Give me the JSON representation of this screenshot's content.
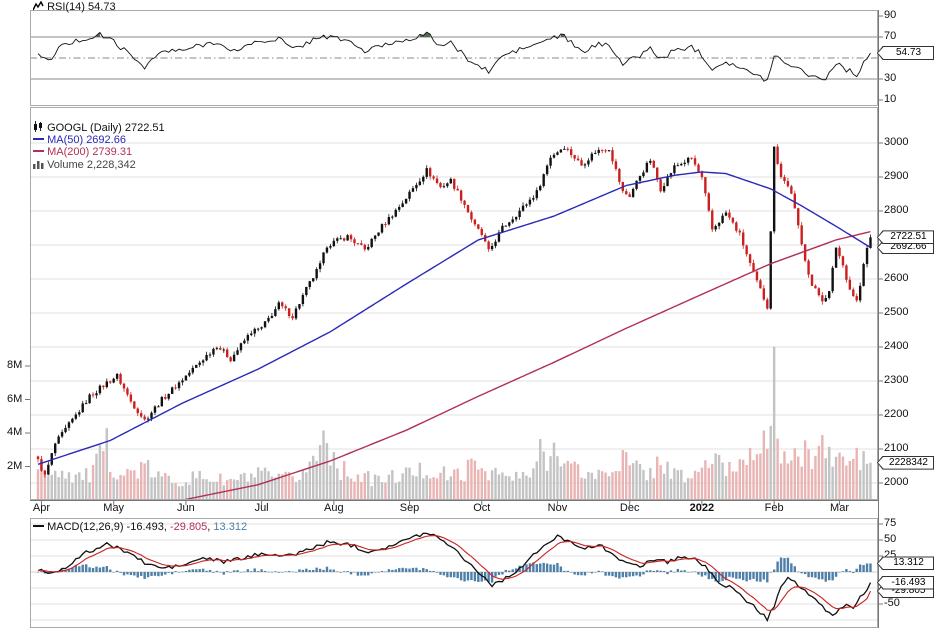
{
  "panes": {
    "rsi": {
      "title": "RSI(14)",
      "value": "54.73",
      "badge": "54.73",
      "axis_ticks": [
        90,
        70,
        30,
        10
      ]
    },
    "price": {
      "symbol_title": "GOOGL (Daily)",
      "symbol_value": "2722.51",
      "ma50_title": "MA(50)",
      "ma50_value": "2692.66",
      "ma200_title": "MA(200)",
      "ma200_value": "2739.31",
      "volume_title": "Volume",
      "volume_value": "2,228,342",
      "price_badge": "2722.51",
      "ma50_badge": "2692.66",
      "volume_badge": "2228342",
      "axis_ticks": [
        3000,
        2900,
        2800,
        2700,
        2600,
        2500,
        2400,
        2300,
        2200,
        2100,
        2000
      ],
      "volume_ticks": [
        {
          "label": "8M",
          "value": 8
        },
        {
          "label": "6M",
          "value": 6
        },
        {
          "label": "4M",
          "value": 4
        },
        {
          "label": "2M",
          "value": 2
        }
      ]
    },
    "macd": {
      "title": "MACD(12,26,9)",
      "value_macd": "-16.493",
      "value_signal": "-29.805",
      "value_hist": "13.312",
      "sep": ", ",
      "badge_hist": "13.312",
      "badge_macd": "-16.493",
      "badge_signal": "-29.805",
      "axis_ticks": [
        75,
        50,
        25,
        -50
      ]
    },
    "x_axis": {
      "months": [
        {
          "label": "Apr",
          "day": 1
        },
        {
          "label": "May",
          "day": 22
        },
        {
          "label": "Jun",
          "day": 43
        },
        {
          "label": "Jul",
          "day": 65
        },
        {
          "label": "Aug",
          "day": 86
        },
        {
          "label": "Sep",
          "day": 108
        },
        {
          "label": "Oct",
          "day": 129
        },
        {
          "label": "Nov",
          "day": 151
        },
        {
          "label": "Dec",
          "day": 172
        },
        {
          "label": "2022",
          "day": 193,
          "bold": true
        },
        {
          "label": "Feb",
          "day": 214
        },
        {
          "label": "Mar",
          "day": 233
        }
      ]
    }
  },
  "colors": {
    "up": "#111111",
    "down": "#cc2020",
    "ma50": "#2a2ab8",
    "ma200": "#b23055",
    "vol_up": "#c3c3c3",
    "vol_down": "#e9b4b4",
    "macd_line": "#111111",
    "signal_line": "#cc2020",
    "hist": "#4d7fa8",
    "grid": "#e0e0e0",
    "axis": "#777777",
    "pane_border": "#aaaaaa",
    "rsi_fill": "#3a5f35"
  },
  "chart_data": {
    "type": "candlestick",
    "title": "GOOGL (Daily) 2722.51 with MA(50), MA(200), Volume, RSI(14), MACD(12,26,9)",
    "x_domain": {
      "start": "Apr 2021",
      "end": "Mar 2022",
      "trading_days": 243
    },
    "price_ylim": [
      1950,
      3105
    ],
    "rsi_ylim": [
      0,
      100
    ],
    "rsi_levels": [
      70,
      50,
      30
    ],
    "macd_gridlines": [
      75,
      50,
      25,
      0,
      -25,
      -50,
      -75
    ],
    "last": {
      "close": 2722.51,
      "ma50": 2692.66,
      "ma200": 2739.31,
      "volume_shares": 2228342,
      "volume_m": 2.228342,
      "rsi": 54.73,
      "macd": -16.493,
      "signal": -29.805,
      "hist": 13.312
    },
    "series": {
      "close_anchors": [
        [
          0,
          2065
        ],
        [
          2,
          2020
        ],
        [
          5,
          2115
        ],
        [
          10,
          2185
        ],
        [
          15,
          2255
        ],
        [
          20,
          2295
        ],
        [
          23,
          2315
        ],
        [
          27,
          2240
        ],
        [
          31,
          2185
        ],
        [
          36,
          2245
        ],
        [
          41,
          2295
        ],
        [
          47,
          2355
        ],
        [
          52,
          2405
        ],
        [
          56,
          2365
        ],
        [
          62,
          2445
        ],
        [
          65,
          2455
        ],
        [
          70,
          2525
        ],
        [
          74,
          2490
        ],
        [
          78,
          2570
        ],
        [
          82,
          2640
        ],
        [
          84,
          2700
        ],
        [
          90,
          2725
        ],
        [
          95,
          2685
        ],
        [
          100,
          2755
        ],
        [
          106,
          2825
        ],
        [
          110,
          2880
        ],
        [
          113,
          2920
        ],
        [
          117,
          2870
        ],
        [
          120,
          2890
        ],
        [
          124,
          2820
        ],
        [
          127,
          2755
        ],
        [
          129,
          2730
        ],
        [
          131,
          2680
        ],
        [
          135,
          2750
        ],
        [
          140,
          2800
        ],
        [
          145,
          2855
        ],
        [
          149,
          2960
        ],
        [
          153,
          2990
        ],
        [
          158,
          2935
        ],
        [
          162,
          2975
        ],
        [
          166,
          2985
        ],
        [
          170,
          2855
        ],
        [
          172,
          2845
        ],
        [
          175,
          2905
        ],
        [
          178,
          2950
        ],
        [
          181,
          2865
        ],
        [
          185,
          2930
        ],
        [
          190,
          2955
        ],
        [
          193,
          2895
        ],
        [
          196,
          2745
        ],
        [
          200,
          2795
        ],
        [
          204,
          2730
        ],
        [
          208,
          2615
        ],
        [
          212,
          2520
        ],
        [
          213,
          2745
        ],
        [
          214,
          2985
        ],
        [
          216,
          2905
        ],
        [
          219,
          2855
        ],
        [
          222,
          2700
        ],
        [
          225,
          2580
        ],
        [
          228,
          2540
        ],
        [
          230,
          2560
        ],
        [
          232,
          2695
        ],
        [
          234,
          2640
        ],
        [
          236,
          2570
        ],
        [
          238,
          2535
        ],
        [
          239,
          2580
        ],
        [
          240,
          2640
        ],
        [
          241,
          2690
        ],
        [
          242,
          2722.51
        ]
      ],
      "ma50_anchors": [
        [
          0,
          2055
        ],
        [
          21,
          2125
        ],
        [
          42,
          2235
        ],
        [
          64,
          2335
        ],
        [
          85,
          2445
        ],
        [
          107,
          2585
        ],
        [
          128,
          2715
        ],
        [
          150,
          2785
        ],
        [
          171,
          2875
        ],
        [
          185,
          2905
        ],
        [
          193,
          2915
        ],
        [
          200,
          2910
        ],
        [
          213,
          2865
        ],
        [
          222,
          2815
        ],
        [
          232,
          2755
        ],
        [
          242,
          2692.66
        ]
      ],
      "ma200_anchors": [
        [
          0,
          1890
        ],
        [
          30,
          1925
        ],
        [
          64,
          1995
        ],
        [
          85,
          2065
        ],
        [
          107,
          2155
        ],
        [
          128,
          2255
        ],
        [
          150,
          2355
        ],
        [
          171,
          2455
        ],
        [
          193,
          2555
        ],
        [
          213,
          2645
        ],
        [
          232,
          2715
        ],
        [
          242,
          2739.31
        ]
      ],
      "volume_m_anchors": [
        [
          0,
          1.6
        ],
        [
          5,
          1.9
        ],
        [
          10,
          1.5
        ],
        [
          15,
          1.4
        ],
        [
          20,
          3.2
        ],
        [
          21,
          2.2
        ],
        [
          25,
          1.5
        ],
        [
          31,
          1.9
        ],
        [
          36,
          1.3
        ],
        [
          42,
          1.2
        ],
        [
          48,
          1.4
        ],
        [
          55,
          1.1
        ],
        [
          60,
          1.3
        ],
        [
          65,
          1.5
        ],
        [
          70,
          1.2
        ],
        [
          76,
          1.4
        ],
        [
          81,
          2.6
        ],
        [
          84,
          4.6
        ],
        [
          85,
          3.0
        ],
        [
          88,
          1.8
        ],
        [
          95,
          1.3
        ],
        [
          100,
          1.2
        ],
        [
          106,
          1.5
        ],
        [
          113,
          1.8
        ],
        [
          120,
          1.4
        ],
        [
          124,
          1.7
        ],
        [
          127,
          2.1
        ],
        [
          131,
          1.8
        ],
        [
          137,
          1.3
        ],
        [
          143,
          1.4
        ],
        [
          146,
          2.8
        ],
        [
          149,
          2.4
        ],
        [
          151,
          3.9
        ],
        [
          153,
          2.2
        ],
        [
          158,
          1.6
        ],
        [
          163,
          1.5
        ],
        [
          166,
          1.7
        ],
        [
          170,
          2.6
        ],
        [
          172,
          2.0
        ],
        [
          178,
          1.6
        ],
        [
          181,
          2.4
        ],
        [
          185,
          1.5
        ],
        [
          190,
          1.3
        ],
        [
          193,
          2.0
        ],
        [
          196,
          2.4
        ],
        [
          200,
          1.8
        ],
        [
          204,
          2.2
        ],
        [
          207,
          3.1
        ],
        [
          209,
          3.7
        ],
        [
          212,
          3.3
        ],
        [
          213,
          3.6
        ],
        [
          214,
          6.8
        ],
        [
          215,
          4.4
        ],
        [
          216,
          3.1
        ],
        [
          219,
          2.2
        ],
        [
          222,
          2.6
        ],
        [
          226,
          2.9
        ],
        [
          228,
          3.4
        ],
        [
          230,
          2.4
        ],
        [
          232,
          2.7
        ],
        [
          235,
          2.1
        ],
        [
          238,
          2.6
        ],
        [
          240,
          2.3
        ],
        [
          242,
          2.228342
        ]
      ],
      "rsi_anchors": [
        [
          0,
          55
        ],
        [
          3,
          46
        ],
        [
          6,
          60
        ],
        [
          12,
          67
        ],
        [
          18,
          72
        ],
        [
          22,
          66
        ],
        [
          27,
          52
        ],
        [
          31,
          42
        ],
        [
          36,
          56
        ],
        [
          42,
          57
        ],
        [
          47,
          62
        ],
        [
          52,
          66
        ],
        [
          56,
          55
        ],
        [
          62,
          64
        ],
        [
          66,
          66
        ],
        [
          70,
          69
        ],
        [
          74,
          58
        ],
        [
          78,
          64
        ],
        [
          82,
          71
        ],
        [
          86,
          69
        ],
        [
          90,
          67
        ],
        [
          95,
          56
        ],
        [
          100,
          62
        ],
        [
          106,
          67
        ],
        [
          110,
          70
        ],
        [
          113,
          73
        ],
        [
          117,
          62
        ],
        [
          120,
          64
        ],
        [
          124,
          52
        ],
        [
          127,
          44
        ],
        [
          131,
          37
        ],
        [
          135,
          52
        ],
        [
          140,
          58
        ],
        [
          145,
          63
        ],
        [
          149,
          69
        ],
        [
          153,
          71
        ],
        [
          158,
          55
        ],
        [
          162,
          62
        ],
        [
          166,
          64
        ],
        [
          170,
          44
        ],
        [
          174,
          51
        ],
        [
          178,
          59
        ],
        [
          181,
          49
        ],
        [
          185,
          57
        ],
        [
          190,
          61
        ],
        [
          193,
          53
        ],
        [
          196,
          40
        ],
        [
          200,
          47
        ],
        [
          204,
          41
        ],
        [
          208,
          34
        ],
        [
          212,
          29
        ],
        [
          214,
          53
        ],
        [
          216,
          48
        ],
        [
          219,
          44
        ],
        [
          222,
          38
        ],
        [
          226,
          32
        ],
        [
          229,
          30
        ],
        [
          232,
          46
        ],
        [
          235,
          39
        ],
        [
          238,
          34
        ],
        [
          240,
          46
        ],
        [
          242,
          54.73
        ]
      ],
      "macd_anchors": [
        [
          0,
          4
        ],
        [
          4,
          -2
        ],
        [
          8,
          8
        ],
        [
          14,
          30
        ],
        [
          20,
          43
        ],
        [
          26,
          32
        ],
        [
          31,
          14
        ],
        [
          36,
          6
        ],
        [
          42,
          10
        ],
        [
          48,
          22
        ],
        [
          54,
          16
        ],
        [
          60,
          22
        ],
        [
          66,
          30
        ],
        [
          72,
          24
        ],
        [
          78,
          34
        ],
        [
          84,
          46
        ],
        [
          90,
          44
        ],
        [
          96,
          32
        ],
        [
          102,
          40
        ],
        [
          108,
          52
        ],
        [
          113,
          62
        ],
        [
          118,
          50
        ],
        [
          123,
          26
        ],
        [
          128,
          0
        ],
        [
          132,
          -20
        ],
        [
          136,
          -10
        ],
        [
          141,
          10
        ],
        [
          146,
          36
        ],
        [
          151,
          55
        ],
        [
          155,
          48
        ],
        [
          159,
          36
        ],
        [
          163,
          42
        ],
        [
          167,
          30
        ],
        [
          171,
          12
        ],
        [
          175,
          10
        ],
        [
          179,
          20
        ],
        [
          183,
          16
        ],
        [
          187,
          24
        ],
        [
          191,
          20
        ],
        [
          194,
          8
        ],
        [
          197,
          -12
        ],
        [
          201,
          -24
        ],
        [
          205,
          -40
        ],
        [
          209,
          -58
        ],
        [
          212,
          -74
        ],
        [
          214,
          -52
        ],
        [
          216,
          -20
        ],
        [
          218,
          -8
        ],
        [
          220,
          -16
        ],
        [
          223,
          -30
        ],
        [
          226,
          -45
        ],
        [
          229,
          -60
        ],
        [
          231,
          -68
        ],
        [
          233,
          -58
        ],
        [
          235,
          -52
        ],
        [
          237,
          -55
        ],
        [
          239,
          -40
        ],
        [
          241,
          -26
        ],
        [
          242,
          -16.493
        ]
      ]
    }
  }
}
